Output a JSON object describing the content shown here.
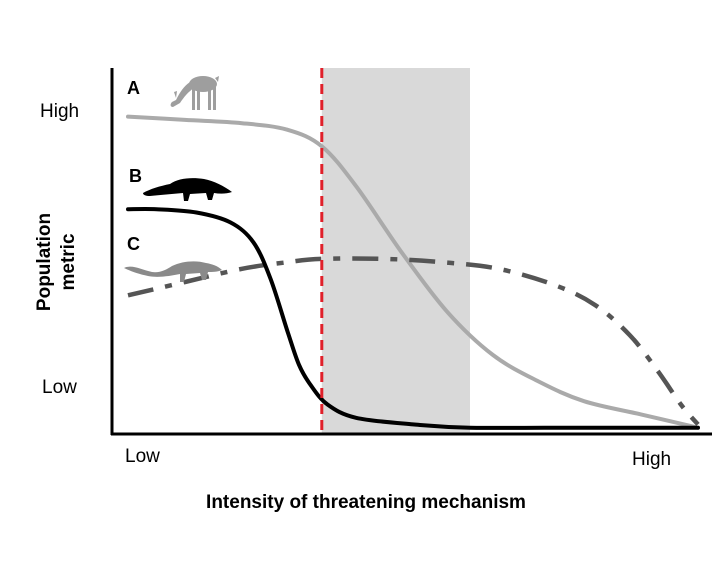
{
  "chart_data": {
    "type": "line",
    "title": "",
    "xlabel": "Intensity of threatening mechanism",
    "ylabel_lines": [
      "Population",
      "metric"
    ],
    "x_ticks": {
      "low": "Low",
      "high": "High"
    },
    "y_ticks": {
      "low": "Low",
      "high": "High"
    },
    "xlim": [
      0,
      1
    ],
    "ylim": [
      0,
      1
    ],
    "threshold_x": 0.34,
    "shaded_region": [
      0.34,
      0.6
    ],
    "series": [
      {
        "name": "A",
        "icon": "deer-icon",
        "color": "#aaaaaa",
        "style": "solid",
        "x": [
          0.0,
          0.1,
          0.2,
          0.28,
          0.34,
          0.4,
          0.48,
          0.56,
          0.64,
          0.72,
          0.8,
          0.9,
          1.0
        ],
        "y": [
          0.95,
          0.94,
          0.93,
          0.91,
          0.86,
          0.74,
          0.54,
          0.36,
          0.23,
          0.15,
          0.09,
          0.05,
          0.01
        ]
      },
      {
        "name": "B",
        "icon": "anteater-icon",
        "color": "#000000",
        "style": "solid",
        "x": [
          0.0,
          0.05,
          0.12,
          0.18,
          0.22,
          0.25,
          0.28,
          0.3,
          0.32,
          0.35,
          0.4,
          0.5,
          0.6,
          0.8,
          1.0
        ],
        "y": [
          0.67,
          0.67,
          0.66,
          0.63,
          0.57,
          0.46,
          0.3,
          0.2,
          0.14,
          0.08,
          0.04,
          0.02,
          0.01,
          0.01,
          0.01
        ]
      },
      {
        "name": "C",
        "icon": "mongoose-icon",
        "color": "#555555",
        "style": "dashdot",
        "x": [
          0.0,
          0.1,
          0.2,
          0.28,
          0.34,
          0.45,
          0.55,
          0.65,
          0.75,
          0.82,
          0.88,
          0.93,
          0.97,
          1.0
        ],
        "y": [
          0.41,
          0.45,
          0.49,
          0.51,
          0.52,
          0.52,
          0.51,
          0.49,
          0.44,
          0.38,
          0.29,
          0.18,
          0.08,
          0.02
        ]
      }
    ],
    "grid": false
  },
  "colors": {
    "threshold": "#e0202a",
    "shade": "#d9d9d9",
    "axis": "#000000"
  }
}
